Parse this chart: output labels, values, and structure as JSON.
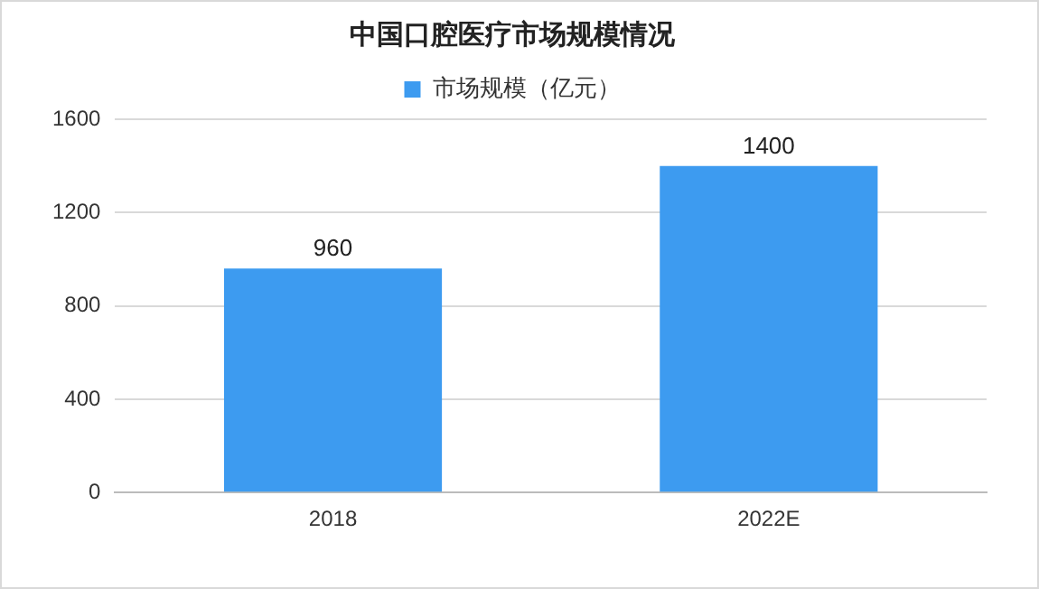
{
  "chart_data": {
    "type": "bar",
    "title": "中国口腔医疗市场规模情况",
    "categories": [
      "2018",
      "2022E"
    ],
    "series": [
      {
        "name": "市场规模（亿元）",
        "color": "#3d9bf0",
        "values": [
          960,
          1400
        ]
      }
    ],
    "ylim": [
      0,
      1600
    ],
    "yticks": [
      0,
      400,
      800,
      1200,
      1600
    ],
    "grid": "y",
    "legend": "top",
    "data_labels": true
  }
}
